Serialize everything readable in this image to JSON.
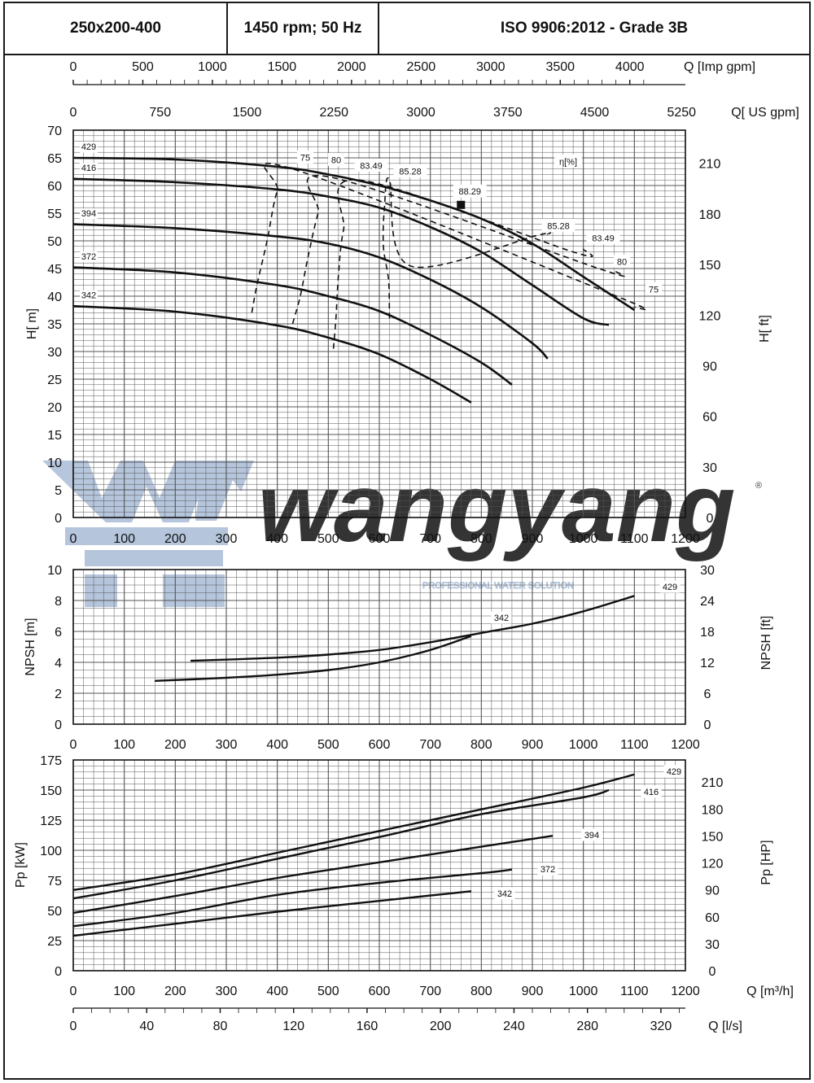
{
  "header": {
    "model": "250x200-400",
    "speed": "1450 rpm; 50 Hz",
    "standard": "ISO 9906:2012 - Grade 3B"
  },
  "watermark": {
    "brand": "wangyang",
    "tagline": "PROFESSIONAL WATER SOLUTION",
    "mark": "®"
  },
  "colors": {
    "curve": "#111111",
    "grid": "#555555",
    "watermark": "#a9bcd6"
  },
  "chart_data": [
    {
      "type": "line",
      "panel": "head",
      "xlabel": "",
      "ylabel": "H[ m]",
      "ylabel_right": "H[ ft]",
      "xlim": [
        0,
        1200
      ],
      "ylim": [
        0,
        70
      ],
      "x_ticks": [
        "0",
        "100",
        "200",
        "300",
        "400",
        "500",
        "600",
        "700",
        "800",
        "900",
        "1000",
        "1100",
        "1200"
      ],
      "y_ticks": [
        "0",
        "5",
        "10",
        "15",
        "20",
        "25",
        "30",
        "35",
        "40",
        "45",
        "50",
        "55",
        "60",
        "65",
        "70"
      ],
      "y_right_ticks": [
        "0",
        "30",
        "60",
        "90",
        "120",
        "150",
        "180",
        "210"
      ],
      "top_axes": [
        {
          "label": "Q [Imp gpm]",
          "ticks": [
            "0",
            "500",
            "1000",
            "1500",
            "2000",
            "2500",
            "3000",
            "3500",
            "4000"
          ]
        },
        {
          "label": "Q[ US gpm]",
          "ticks": [
            "0",
            "750",
            "1500",
            "2250",
            "3000",
            "3750",
            "4500",
            "5250"
          ]
        }
      ],
      "efficiency_label": "η[%]",
      "series": [
        {
          "name": "429",
          "x": [
            0,
            200,
            400,
            500,
            600,
            700,
            800,
            900,
            1000,
            1100
          ],
          "y": [
            65,
            64.7,
            63.4,
            62,
            60,
            57.3,
            54,
            49.5,
            43.5,
            37.5
          ]
        },
        {
          "name": "416",
          "x": [
            0,
            200,
            400,
            500,
            600,
            700,
            800,
            900,
            1000,
            1050
          ],
          "y": [
            61.2,
            60.6,
            59.3,
            58,
            56,
            52.5,
            48,
            42,
            36,
            34.8
          ]
        },
        {
          "name": "394",
          "x": [
            0,
            200,
            400,
            500,
            600,
            700,
            800,
            900,
            930
          ],
          "y": [
            53,
            52.3,
            50.8,
            49.5,
            47,
            43,
            38,
            31.5,
            28.7
          ]
        },
        {
          "name": "372",
          "x": [
            0,
            200,
            400,
            500,
            600,
            700,
            800,
            860
          ],
          "y": [
            45.2,
            44.3,
            42,
            40,
            37.3,
            33,
            28,
            24
          ]
        },
        {
          "name": "342",
          "x": [
            0,
            200,
            400,
            500,
            600,
            700,
            780
          ],
          "y": [
            38.2,
            37.2,
            34.7,
            32.5,
            29.5,
            25,
            20.8
          ]
        }
      ],
      "efficiency_curves": [
        {
          "name": "75",
          "x": [
            350,
            360,
            380,
            400,
            430,
            1065,
            1100
          ],
          "y": [
            37,
            42,
            50,
            59,
            63,
            40,
            38
          ]
        },
        {
          "name": "80",
          "x": [
            430,
            445,
            460,
            480,
            505,
            1030,
            1063
          ],
          "y": [
            35,
            40,
            47,
            55,
            61.5,
            45,
            44.5
          ]
        },
        {
          "name": "83.49",
          "x": [
            510,
            515,
            520,
            530,
            560,
            980,
            1000
          ],
          "y": [
            30.5,
            36,
            44,
            52,
            61,
            48,
            48.5
          ]
        },
        {
          "name": "85.28",
          "x": [
            620,
            618,
            608,
            610,
            620,
            660,
            910,
            930
          ],
          "y": [
            36,
            43,
            49,
            56,
            61,
            45.5,
            51,
            51.2
          ]
        }
      ],
      "efficiency_labels_top": [
        "75",
        "80",
        "83.49",
        "85.28"
      ],
      "efficiency_labels_right": [
        "85.28",
        "83.49",
        "80",
        "75"
      ],
      "bep": {
        "label": "88.29",
        "x": 760,
        "y": 56.5
      },
      "impeller_labels": [
        "429",
        "416",
        "394",
        "372",
        "342"
      ]
    },
    {
      "type": "line",
      "panel": "npsh",
      "ylabel": "NPSH [m]",
      "ylabel_right": "NPSH [ft]",
      "xlim": [
        0,
        1200
      ],
      "ylim": [
        0,
        10
      ],
      "x_ticks": [
        "0",
        "100",
        "200",
        "300",
        "400",
        "500",
        "600",
        "700",
        "800",
        "900",
        "1000",
        "1100",
        "1200"
      ],
      "y_ticks": [
        "0",
        "2",
        "4",
        "6",
        "8",
        "10"
      ],
      "y_right_ticks": [
        "0",
        "6",
        "12",
        "18",
        "24",
        "30"
      ],
      "series": [
        {
          "name": "429",
          "x": [
            230,
            400,
            500,
            600,
            700,
            800,
            900,
            1000,
            1100
          ],
          "y": [
            4.1,
            4.3,
            4.5,
            4.8,
            5.3,
            5.9,
            6.5,
            7.3,
            8.3
          ]
        },
        {
          "name": "342",
          "x": [
            160,
            300,
            400,
            500,
            600,
            700,
            780
          ],
          "y": [
            2.8,
            3.0,
            3.2,
            3.5,
            4.0,
            4.8,
            5.7
          ]
        }
      ]
    },
    {
      "type": "line",
      "panel": "power",
      "ylabel": "Pp [kW]",
      "ylabel_right": "Pp [HP]",
      "xlabel": "Q [m³/h]",
      "xlim": [
        0,
        1200
      ],
      "ylim": [
        0,
        175
      ],
      "x_ticks": [
        "0",
        "100",
        "200",
        "300",
        "400",
        "500",
        "600",
        "700",
        "800",
        "900",
        "1000",
        "1100",
        "1200"
      ],
      "y_ticks": [
        "0",
        "25",
        "50",
        "75",
        "100",
        "125",
        "150",
        "175"
      ],
      "y_right_ticks": [
        "0",
        "30",
        "60",
        "90",
        "120",
        "150",
        "180",
        "210"
      ],
      "bottom_axis": {
        "label": "Q [l/s]",
        "ticks": [
          "0",
          "40",
          "80",
          "120",
          "160",
          "200",
          "240",
          "280",
          "320"
        ]
      },
      "series": [
        {
          "name": "429",
          "x": [
            0,
            200,
            400,
            600,
            800,
            1000,
            1100
          ],
          "y": [
            67,
            80,
            98,
            116,
            134,
            152,
            163
          ]
        },
        {
          "name": "416",
          "x": [
            0,
            200,
            400,
            600,
            800,
            1000,
            1050
          ],
          "y": [
            60,
            75,
            93,
            111,
            130,
            144,
            150
          ]
        },
        {
          "name": "394",
          "x": [
            0,
            200,
            400,
            600,
            800,
            940
          ],
          "y": [
            48,
            62,
            77,
            90,
            103,
            112
          ]
        },
        {
          "name": "372",
          "x": [
            0,
            200,
            400,
            600,
            800,
            860
          ],
          "y": [
            37,
            48,
            63,
            73,
            81,
            84
          ]
        },
        {
          "name": "342",
          "x": [
            0,
            200,
            400,
            600,
            780
          ],
          "y": [
            29,
            39,
            49,
            58,
            66
          ]
        }
      ]
    }
  ]
}
